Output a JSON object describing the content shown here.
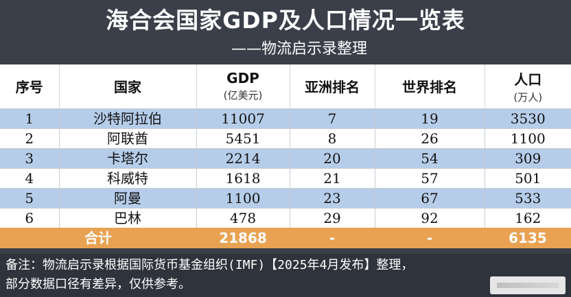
{
  "title": "海合会国家GDP及人口情况一览表",
  "subtitle": "——物流启示录整理",
  "columns": [
    {
      "main": "序号",
      "sub": ""
    },
    {
      "main": "国家",
      "sub": ""
    },
    {
      "main": "GDP",
      "sub": "(亿美元)"
    },
    {
      "main": "亚洲排名",
      "sub": ""
    },
    {
      "main": "世界排名",
      "sub": ""
    },
    {
      "main": "人口",
      "sub": "(万人)"
    }
  ],
  "rows": [
    {
      "no": "1",
      "country": "沙特阿拉伯",
      "gdp": "11007",
      "asia": "7",
      "world": "19",
      "pop": "3530"
    },
    {
      "no": "2",
      "country": "阿联酋",
      "gdp": "5451",
      "asia": "8",
      "world": "26",
      "pop": "1100"
    },
    {
      "no": "3",
      "country": "卡塔尔",
      "gdp": "2214",
      "asia": "20",
      "world": "54",
      "pop": "309"
    },
    {
      "no": "4",
      "country": "科威特",
      "gdp": "1618",
      "asia": "21",
      "world": "57",
      "pop": "501"
    },
    {
      "no": "5",
      "country": "阿曼",
      "gdp": "1100",
      "asia": "23",
      "world": "67",
      "pop": "533"
    },
    {
      "no": "6",
      "country": "巴林",
      "gdp": "478",
      "asia": "29",
      "world": "92",
      "pop": "162"
    }
  ],
  "total": {
    "label": "合计",
    "gdp": "21868",
    "asia": "-",
    "world": "-",
    "pop": "6135"
  },
  "note": {
    "line1": "备注：物流启示录根据国际货币基金组织(IMF)【2025年4月发布】整理，",
    "line2": "部分数据口径有差异，仅供参考。"
  },
  "colors": {
    "background": "#3a3f49",
    "row_blue": "#b6cdea",
    "row_white": "#ffffff",
    "total_orange": "#e9a252"
  }
}
